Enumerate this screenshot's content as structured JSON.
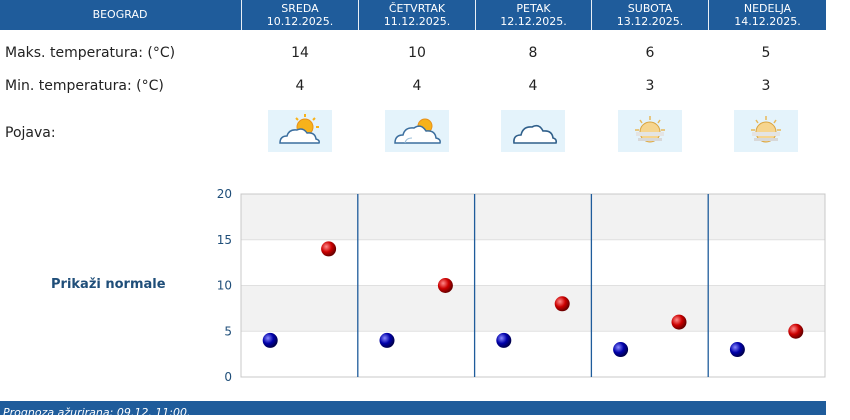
{
  "header": {
    "city": "BEOGRAD",
    "days": [
      {
        "name": "SREDA",
        "date": "10.12.2025."
      },
      {
        "name": "ČETVRTAK",
        "date": "11.12.2025."
      },
      {
        "name": "PETAK",
        "date": "12.12.2025."
      },
      {
        "name": "SUBOTA",
        "date": "13.12.2025."
      },
      {
        "name": "NEDELJA",
        "date": "14.12.2025."
      }
    ]
  },
  "rows": {
    "max_label": "Maks. temperatura: (°C)",
    "max_values": [
      "14",
      "10",
      "8",
      "6",
      "5"
    ],
    "min_label": "Min. temperatura: (°C)",
    "min_values": [
      "4",
      "4",
      "4",
      "3",
      "3"
    ],
    "phenomenon_label": "Pojava:",
    "icons": [
      "partly-cloudy-icon",
      "partly-cloudy-icon",
      "cloudy-icon",
      "sun-haze-icon",
      "sun-haze-icon"
    ]
  },
  "normals_label": "Prikaži normale",
  "footer": {
    "updated": "Prognoza ažurirana:  09.12. 11:00."
  },
  "colors": {
    "header": "#1f5c9b",
    "max_marker": "#cc0000",
    "min_marker": "#0000aa",
    "separator": "#1f5c9b"
  },
  "chart_data": {
    "type": "scatter",
    "categories": [
      "SREDA",
      "ČETVRTAK",
      "PETAK",
      "SUBOTA",
      "NEDELJA"
    ],
    "series": [
      {
        "values": [
          4,
          4,
          4,
          3,
          3
        ]
      },
      {
        "values": [
          14,
          10,
          8,
          6,
          5
        ]
      }
    ],
    "yticks": [
      "0",
      "5",
      "10",
      "15",
      "20"
    ],
    "ylim": [
      0,
      20
    ],
    "grid": true
  }
}
